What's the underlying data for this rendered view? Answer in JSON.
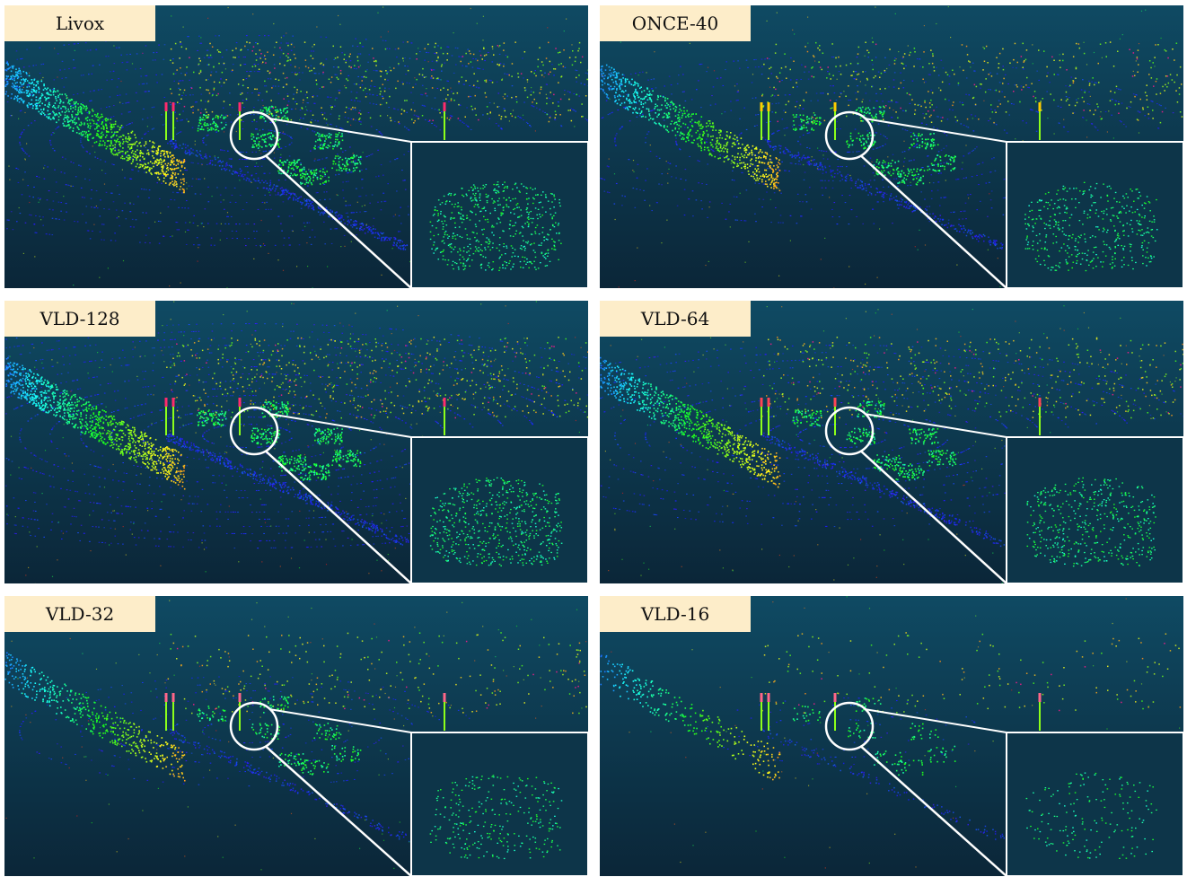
{
  "panels": [
    {
      "label": "Livox",
      "density": 1.0,
      "accent": "#ff2a6d"
    },
    {
      "label": "ONCE-40",
      "density": 0.75,
      "accent": "#ffcc00"
    },
    {
      "label": "VLD-128",
      "density": 1.1,
      "accent": "#ff2a6d"
    },
    {
      "label": "VLD-64",
      "density": 0.85,
      "accent": "#ff4455"
    },
    {
      "label": "VLD-32",
      "density": 0.5,
      "accent": "#ff6688"
    },
    {
      "label": "VLD-16",
      "density": 0.3,
      "accent": "#ff6688"
    }
  ],
  "colors": {
    "background_top": "#0f4a63",
    "background_bottom": "#0b2638",
    "zoom_frame": "#ffffff",
    "label_bg": "#fdedc9"
  }
}
